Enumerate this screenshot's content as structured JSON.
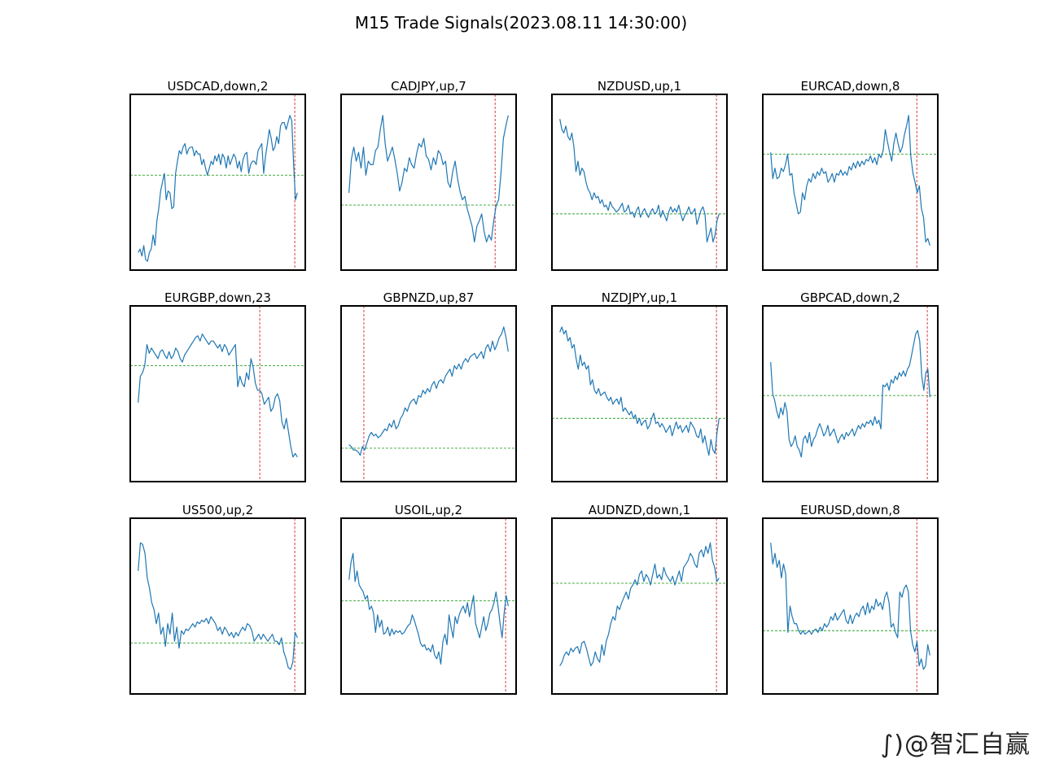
{
  "figure": {
    "title": "M15 Trade Signals(2023.08.11 14:30:00)",
    "line_color": "#1f77b4",
    "level_color": "#2ca02c",
    "marker_color": "#d62728"
  },
  "watermark": "∫)@智汇自赢",
  "chart_data": [
    {
      "type": "line",
      "title": "USDCAD,down,2",
      "level": 0.54,
      "marker": 0.94,
      "values": [
        0.1,
        0.12,
        0.08,
        0.14,
        0.06,
        0.05,
        0.1,
        0.12,
        0.2,
        0.14,
        0.28,
        0.35,
        0.45,
        0.5,
        0.55,
        0.4,
        0.45,
        0.44,
        0.35,
        0.36,
        0.55,
        0.62,
        0.68,
        0.66,
        0.7,
        0.72,
        0.66,
        0.69,
        0.7,
        0.7,
        0.65,
        0.68,
        0.66,
        0.66,
        0.6,
        0.63,
        0.58,
        0.54,
        0.58,
        0.62,
        0.6,
        0.65,
        0.62,
        0.66,
        0.6,
        0.66,
        0.64,
        0.58,
        0.65,
        0.6,
        0.63,
        0.66,
        0.64,
        0.58,
        0.62,
        0.56,
        0.63,
        0.66,
        0.67,
        0.55,
        0.6,
        0.62,
        0.62,
        0.6,
        0.68,
        0.7,
        0.72,
        0.55,
        0.65,
        0.72,
        0.8,
        0.75,
        0.68,
        0.7,
        0.76,
        0.72,
        0.82,
        0.84,
        0.84,
        0.8,
        0.84,
        0.88,
        0.85,
        0.6,
        0.4,
        0.44
      ]
    },
    {
      "type": "line",
      "title": "CADJPY,up,7",
      "level": 0.37,
      "marker": 0.88,
      "values": [
        0.44,
        0.63,
        0.7,
        0.62,
        0.67,
        0.58,
        0.7,
        0.54,
        0.62,
        0.6,
        0.6,
        0.68,
        0.7,
        0.8,
        0.88,
        0.72,
        0.62,
        0.66,
        0.7,
        0.63,
        0.55,
        0.45,
        0.5,
        0.58,
        0.56,
        0.64,
        0.6,
        0.58,
        0.66,
        0.72,
        0.7,
        0.75,
        0.65,
        0.63,
        0.57,
        0.64,
        0.6,
        0.68,
        0.66,
        0.6,
        0.62,
        0.5,
        0.47,
        0.56,
        0.62,
        0.52,
        0.45,
        0.4,
        0.42,
        0.35,
        0.3,
        0.25,
        0.16,
        0.25,
        0.28,
        0.32,
        0.22,
        0.16,
        0.2,
        0.17,
        0.28,
        0.37,
        0.4,
        0.55,
        0.75,
        0.82,
        0.88
      ]
    },
    {
      "type": "line",
      "title": "NZDUSD,up,1",
      "level": 0.32,
      "marker": 0.94,
      "values": [
        0.86,
        0.8,
        0.78,
        0.82,
        0.76,
        0.74,
        0.78,
        0.7,
        0.56,
        0.62,
        0.54,
        0.58,
        0.56,
        0.5,
        0.46,
        0.44,
        0.4,
        0.44,
        0.41,
        0.42,
        0.38,
        0.4,
        0.36,
        0.37,
        0.34,
        0.39,
        0.36,
        0.35,
        0.33,
        0.34,
        0.36,
        0.38,
        0.33,
        0.34,
        0.37,
        0.32,
        0.33,
        0.3,
        0.34,
        0.36,
        0.3,
        0.33,
        0.35,
        0.32,
        0.3,
        0.33,
        0.35,
        0.32,
        0.33,
        0.37,
        0.3,
        0.34,
        0.31,
        0.28,
        0.33,
        0.36,
        0.33,
        0.35,
        0.33,
        0.37,
        0.32,
        0.28,
        0.31,
        0.33,
        0.36,
        0.32,
        0.33,
        0.35,
        0.26,
        0.3,
        0.34,
        0.36,
        0.32,
        0.16,
        0.2,
        0.24,
        0.16,
        0.2,
        0.28,
        0.32
      ]
    },
    {
      "type": "line",
      "title": "EURCAD,down,8",
      "level": 0.66,
      "marker": 0.88,
      "values": [
        0.67,
        0.52,
        0.58,
        0.52,
        0.53,
        0.58,
        0.56,
        0.6,
        0.66,
        0.54,
        0.55,
        0.44,
        0.38,
        0.32,
        0.33,
        0.44,
        0.4,
        0.48,
        0.52,
        0.5,
        0.55,
        0.52,
        0.56,
        0.54,
        0.58,
        0.55,
        0.56,
        0.5,
        0.52,
        0.55,
        0.5,
        0.55,
        0.54,
        0.57,
        0.54,
        0.56,
        0.54,
        0.59,
        0.57,
        0.61,
        0.58,
        0.62,
        0.59,
        0.62,
        0.6,
        0.63,
        0.62,
        0.65,
        0.61,
        0.64,
        0.6,
        0.66,
        0.64,
        0.68,
        0.8,
        0.73,
        0.67,
        0.62,
        0.72,
        0.78,
        0.72,
        0.67,
        0.7,
        0.77,
        0.82,
        0.88,
        0.65,
        0.55,
        0.5,
        0.44,
        0.48,
        0.35,
        0.3,
        0.16,
        0.18,
        0.14
      ]
    },
    {
      "type": "line",
      "title": "EURGBP,down,23",
      "level": 0.66,
      "marker": 0.74,
      "values": [
        0.45,
        0.6,
        0.62,
        0.66,
        0.78,
        0.73,
        0.76,
        0.74,
        0.72,
        0.7,
        0.74,
        0.75,
        0.72,
        0.7,
        0.74,
        0.7,
        0.72,
        0.76,
        0.74,
        0.7,
        0.68,
        0.72,
        0.74,
        0.76,
        0.78,
        0.8,
        0.82,
        0.83,
        0.8,
        0.84,
        0.82,
        0.8,
        0.78,
        0.8,
        0.8,
        0.78,
        0.76,
        0.78,
        0.74,
        0.78,
        0.76,
        0.72,
        0.74,
        0.76,
        0.78,
        0.54,
        0.6,
        0.56,
        0.54,
        0.62,
        0.58,
        0.7,
        0.65,
        0.56,
        0.52,
        0.52,
        0.5,
        0.44,
        0.46,
        0.48,
        0.4,
        0.42,
        0.48,
        0.5,
        0.46,
        0.34,
        0.3,
        0.36,
        0.28,
        0.2,
        0.14,
        0.16,
        0.14
      ]
    },
    {
      "type": "line",
      "title": "GBPNZD,up,87",
      "level": 0.19,
      "marker": 0.13,
      "values": [
        0.21,
        0.2,
        0.18,
        0.18,
        0.17,
        0.15,
        0.2,
        0.18,
        0.22,
        0.26,
        0.28,
        0.26,
        0.27,
        0.25,
        0.26,
        0.28,
        0.3,
        0.29,
        0.33,
        0.31,
        0.35,
        0.3,
        0.32,
        0.36,
        0.38,
        0.42,
        0.4,
        0.44,
        0.46,
        0.47,
        0.44,
        0.49,
        0.48,
        0.52,
        0.5,
        0.53,
        0.51,
        0.55,
        0.57,
        0.53,
        0.57,
        0.58,
        0.56,
        0.6,
        0.62,
        0.64,
        0.6,
        0.66,
        0.64,
        0.67,
        0.64,
        0.68,
        0.7,
        0.68,
        0.71,
        0.72,
        0.73,
        0.7,
        0.72,
        0.74,
        0.7,
        0.76,
        0.78,
        0.74,
        0.8,
        0.75,
        0.78,
        0.82,
        0.84,
        0.88,
        0.82,
        0.74
      ]
    },
    {
      "type": "line",
      "title": "NZDJPY,up,1",
      "level": 0.36,
      "marker": 0.94,
      "values": [
        0.85,
        0.88,
        0.84,
        0.86,
        0.8,
        0.82,
        0.76,
        0.78,
        0.7,
        0.64,
        0.72,
        0.66,
        0.68,
        0.64,
        0.66,
        0.55,
        0.58,
        0.52,
        0.5,
        0.53,
        0.49,
        0.5,
        0.51,
        0.48,
        0.46,
        0.48,
        0.44,
        0.46,
        0.47,
        0.44,
        0.48,
        0.4,
        0.42,
        0.4,
        0.38,
        0.4,
        0.36,
        0.38,
        0.33,
        0.36,
        0.32,
        0.34,
        0.35,
        0.3,
        0.32,
        0.36,
        0.39,
        0.33,
        0.34,
        0.31,
        0.33,
        0.31,
        0.28,
        0.3,
        0.32,
        0.26,
        0.3,
        0.34,
        0.3,
        0.32,
        0.28,
        0.3,
        0.32,
        0.28,
        0.34,
        0.32,
        0.3,
        0.26,
        0.25,
        0.3,
        0.22,
        0.26,
        0.2,
        0.15,
        0.24,
        0.18,
        0.16,
        0.28,
        0.36
      ]
    },
    {
      "type": "line",
      "title": "GBPCAD,down,2",
      "level": 0.49,
      "marker": 0.94,
      "values": [
        0.68,
        0.5,
        0.46,
        0.4,
        0.36,
        0.42,
        0.38,
        0.45,
        0.4,
        0.24,
        0.2,
        0.22,
        0.26,
        0.2,
        0.18,
        0.14,
        0.24,
        0.26,
        0.22,
        0.28,
        0.2,
        0.24,
        0.26,
        0.3,
        0.33,
        0.3,
        0.26,
        0.28,
        0.32,
        0.26,
        0.28,
        0.3,
        0.26,
        0.22,
        0.25,
        0.27,
        0.24,
        0.28,
        0.26,
        0.28,
        0.3,
        0.26,
        0.29,
        0.32,
        0.3,
        0.33,
        0.31,
        0.34,
        0.33,
        0.35,
        0.32,
        0.37,
        0.33,
        0.35,
        0.3,
        0.55,
        0.54,
        0.56,
        0.52,
        0.58,
        0.56,
        0.6,
        0.58,
        0.62,
        0.6,
        0.63,
        0.6,
        0.64,
        0.66,
        0.72,
        0.78,
        0.84,
        0.86,
        0.8,
        0.6,
        0.52,
        0.62,
        0.64,
        0.48
      ]
    },
    {
      "type": "line",
      "title": "US500,up,2",
      "level": 0.29,
      "marker": 0.94,
      "values": [
        0.7,
        0.86,
        0.85,
        0.8,
        0.66,
        0.6,
        0.52,
        0.48,
        0.4,
        0.46,
        0.34,
        0.38,
        0.27,
        0.4,
        0.34,
        0.46,
        0.3,
        0.38,
        0.26,
        0.36,
        0.34,
        0.37,
        0.36,
        0.38,
        0.4,
        0.38,
        0.41,
        0.4,
        0.42,
        0.41,
        0.43,
        0.4,
        0.44,
        0.42,
        0.4,
        0.36,
        0.38,
        0.34,
        0.38,
        0.36,
        0.33,
        0.35,
        0.32,
        0.35,
        0.33,
        0.36,
        0.38,
        0.36,
        0.4,
        0.39,
        0.36,
        0.3,
        0.32,
        0.34,
        0.31,
        0.34,
        0.32,
        0.3,
        0.32,
        0.34,
        0.3,
        0.3,
        0.28,
        0.32,
        0.24,
        0.2,
        0.15,
        0.14,
        0.18,
        0.35,
        0.32
      ]
    },
    {
      "type": "line",
      "title": "USOIL,up,2",
      "level": 0.53,
      "marker": 0.94,
      "values": [
        0.65,
        0.75,
        0.8,
        0.64,
        0.7,
        0.62,
        0.6,
        0.58,
        0.54,
        0.56,
        0.48,
        0.5,
        0.46,
        0.35,
        0.45,
        0.38,
        0.42,
        0.34,
        0.35,
        0.38,
        0.33,
        0.37,
        0.34,
        0.36,
        0.35,
        0.36,
        0.34,
        0.35,
        0.37,
        0.39,
        0.4,
        0.45,
        0.42,
        0.38,
        0.34,
        0.29,
        0.27,
        0.28,
        0.25,
        0.26,
        0.24,
        0.28,
        0.22,
        0.2,
        0.24,
        0.17,
        0.3,
        0.34,
        0.28,
        0.45,
        0.38,
        0.32,
        0.44,
        0.4,
        0.45,
        0.48,
        0.5,
        0.46,
        0.52,
        0.44,
        0.5,
        0.56,
        0.4,
        0.36,
        0.32,
        0.38,
        0.44,
        0.36,
        0.4,
        0.46,
        0.48,
        0.52,
        0.58,
        0.5,
        0.4,
        0.32,
        0.46,
        0.56,
        0.5
      ]
    },
    {
      "type": "line",
      "title": "AUDNZD,down,1",
      "level": 0.63,
      "marker": 0.94,
      "values": [
        0.16,
        0.18,
        0.22,
        0.24,
        0.22,
        0.26,
        0.24,
        0.26,
        0.27,
        0.23,
        0.29,
        0.3,
        0.26,
        0.21,
        0.16,
        0.18,
        0.24,
        0.2,
        0.18,
        0.28,
        0.22,
        0.3,
        0.34,
        0.4,
        0.44,
        0.42,
        0.5,
        0.48,
        0.52,
        0.55,
        0.58,
        0.54,
        0.6,
        0.62,
        0.65,
        0.62,
        0.68,
        0.7,
        0.64,
        0.68,
        0.66,
        0.62,
        0.68,
        0.74,
        0.66,
        0.68,
        0.65,
        0.72,
        0.68,
        0.66,
        0.64,
        0.67,
        0.62,
        0.66,
        0.7,
        0.64,
        0.72,
        0.74,
        0.76,
        0.8,
        0.78,
        0.74,
        0.72,
        0.8,
        0.82,
        0.78,
        0.84,
        0.8,
        0.86,
        0.76,
        0.72,
        0.64,
        0.66
      ]
    },
    {
      "type": "line",
      "title": "EURUSD,down,8",
      "level": 0.36,
      "marker": 0.88,
      "values": [
        0.86,
        0.74,
        0.8,
        0.72,
        0.76,
        0.66,
        0.74,
        0.68,
        0.35,
        0.5,
        0.44,
        0.4,
        0.4,
        0.36,
        0.34,
        0.36,
        0.34,
        0.35,
        0.36,
        0.34,
        0.36,
        0.37,
        0.35,
        0.38,
        0.36,
        0.4,
        0.38,
        0.4,
        0.44,
        0.42,
        0.46,
        0.42,
        0.44,
        0.46,
        0.48,
        0.42,
        0.4,
        0.45,
        0.4,
        0.44,
        0.46,
        0.44,
        0.48,
        0.5,
        0.45,
        0.52,
        0.46,
        0.5,
        0.48,
        0.54,
        0.5,
        0.52,
        0.48,
        0.55,
        0.58,
        0.52,
        0.38,
        0.4,
        0.35,
        0.32,
        0.58,
        0.55,
        0.6,
        0.62,
        0.58,
        0.36,
        0.28,
        0.24,
        0.3,
        0.16,
        0.2,
        0.14,
        0.16,
        0.28,
        0.22
      ]
    }
  ]
}
